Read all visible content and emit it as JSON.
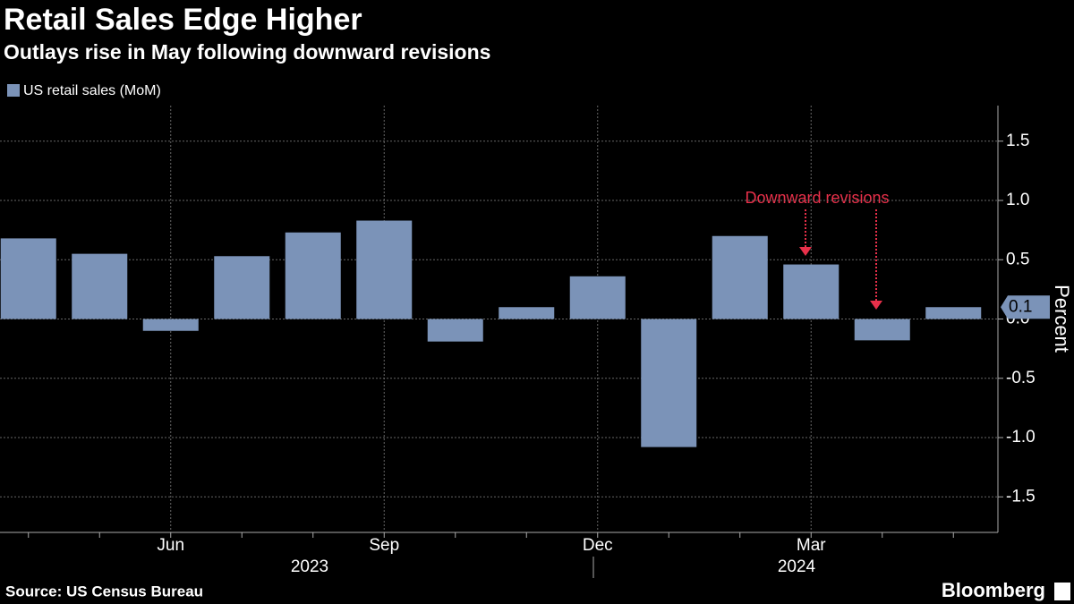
{
  "chart_data": {
    "type": "bar",
    "title": "Retail Sales Edge Higher",
    "subtitle": "Outlays rise in May following downward revisions",
    "y_label": "Percent",
    "source": "Source: US Census Bureau",
    "brand": "Bloomberg",
    "annotation": "Downward revisions",
    "categories": [
      null,
      null,
      "Jun",
      null,
      null,
      "Sep",
      null,
      null,
      "Dec",
      null,
      null,
      "Mar",
      null,
      null
    ],
    "year_labels": [
      "2023",
      "2024"
    ],
    "series": [
      {
        "name": "US retail sales (MoM)",
        "color": "#7b93b8",
        "values": [
          0.68,
          0.55,
          -0.1,
          0.53,
          0.73,
          0.83,
          -0.19,
          0.1,
          0.36,
          -1.08,
          0.7,
          0.46,
          -0.18,
          0.1
        ]
      }
    ],
    "ylim": [
      -1.8,
      1.8
    ],
    "yticks": [
      -1.5,
      {
        "value": -1,
        "label": "-1.0"
      },
      -0.5,
      {
        "value": 0,
        "label": "0.0"
      },
      0.5,
      {
        "value": 1,
        "label": "1.0"
      },
      1.5
    ],
    "grid": true
  }
}
